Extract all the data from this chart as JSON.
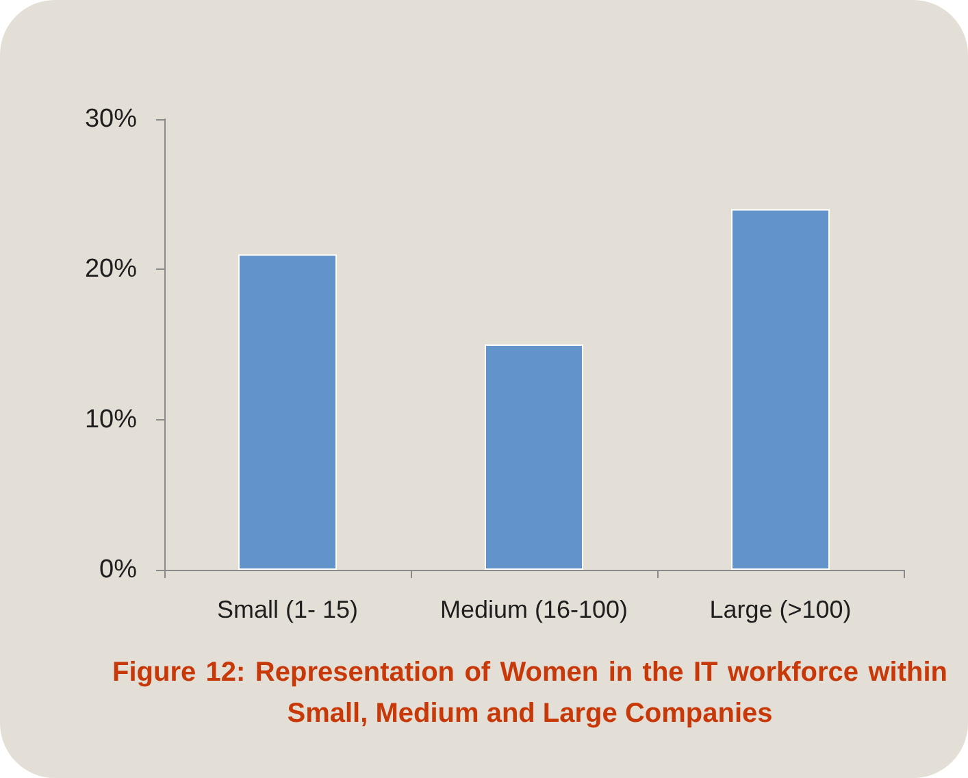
{
  "chart_data": {
    "type": "bar",
    "title": "Figure 12: Representation of Women in the IT workforce within Small, Medium and Large Companies",
    "categories": [
      "Small (1- 15)",
      "Medium (16-100)",
      "Large (>100)"
    ],
    "values": [
      21,
      15,
      24
    ],
    "color": "#6393cb",
    "ylim": [
      0,
      30
    ],
    "yticks": [
      {
        "value": 0,
        "label": "0%"
      },
      {
        "value": 10,
        "label": "10%"
      },
      {
        "value": 20,
        "label": "20%"
      },
      {
        "value": 30,
        "label": "30%"
      }
    ],
    "grid": false
  }
}
